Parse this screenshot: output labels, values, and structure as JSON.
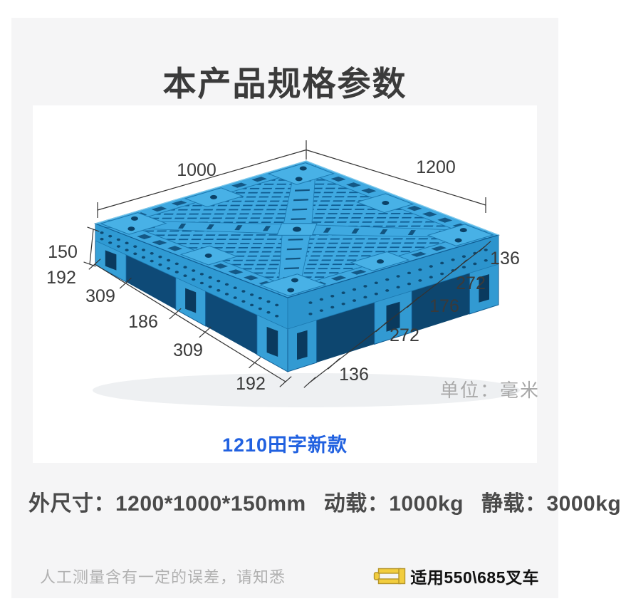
{
  "title": "本产品规格参数",
  "pallet": {
    "top_left_dim": "1000",
    "top_right_dim": "1200",
    "height_dim": "150",
    "left_edge_segments": [
      "192",
      "309",
      "186",
      "309",
      "192"
    ],
    "right_edge_segments": [
      "136",
      "272",
      "176",
      "272",
      "136"
    ],
    "unit_note": "单位：毫米",
    "model_name": "1210田字新款",
    "plastic_color": "#3fa9e1"
  },
  "specs": [
    "外尺寸：1200*1000*150mm",
    "动载：1000kg",
    "静载：3000kg"
  ],
  "footer": {
    "disclaimer": "人工测量含有一定的误差，请知悉",
    "forklift_note": "适用550\\685叉车",
    "forklift_icon_color": "#f2cd3e"
  }
}
